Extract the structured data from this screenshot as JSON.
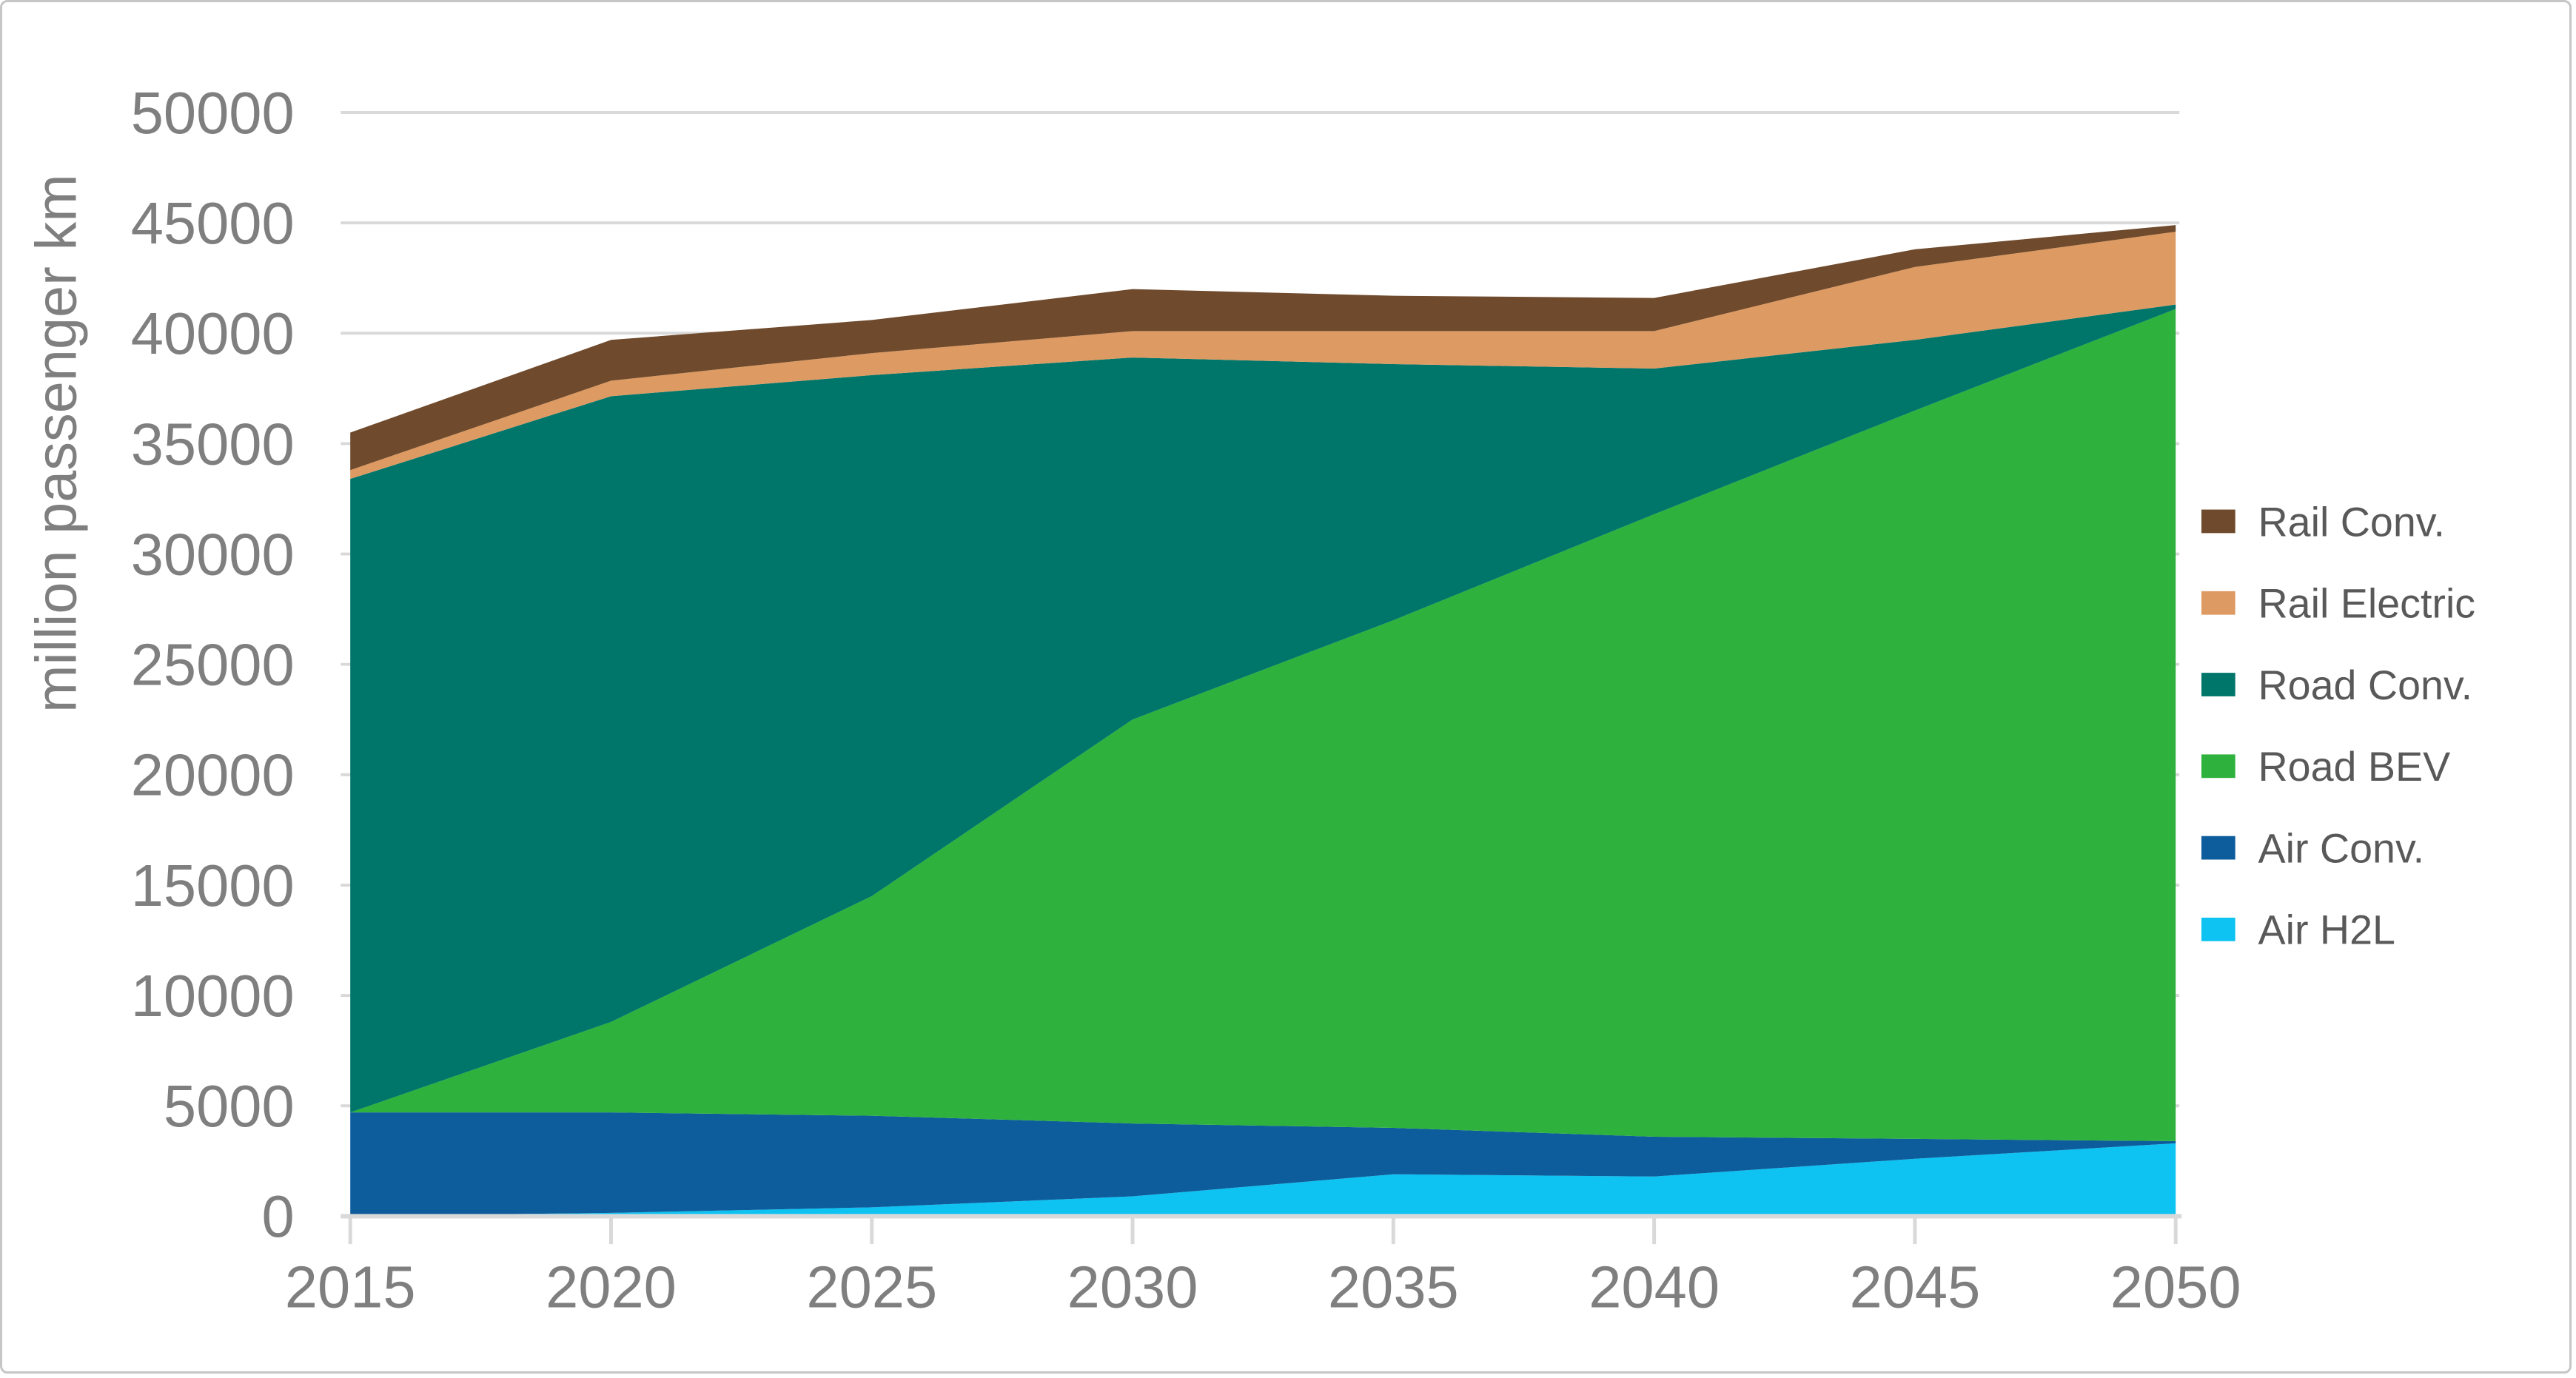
{
  "chart_data": {
    "type": "area",
    "stacked": true,
    "title": "",
    "xlabel": "",
    "ylabel": "million passenger km",
    "x": [
      2015,
      2020,
      2025,
      2030,
      2035,
      2040,
      2045,
      2050
    ],
    "xtick_labels": [
      "2015",
      "2020",
      "2025",
      "2030",
      "2035",
      "2040",
      "2045",
      "2050"
    ],
    "ylim": [
      0,
      50000
    ],
    "ytick_step": 5000,
    "ytick_labels": [
      "0",
      "5000",
      "10000",
      "15000",
      "20000",
      "25000",
      "30000",
      "35000",
      "40000",
      "45000",
      "50000"
    ],
    "grid": true,
    "legend_position": "right",
    "series": [
      {
        "name": "Air H2L",
        "color": "#0ec2f1",
        "values": [
          0,
          150,
          400,
          900,
          1900,
          1800,
          2600,
          3300
        ]
      },
      {
        "name": "Air Conv.",
        "color": "#0d5c9c",
        "values": [
          4700,
          4550,
          4150,
          3300,
          2100,
          1800,
          900,
          100
        ]
      },
      {
        "name": "Road BEV",
        "color": "#2eb23d",
        "values": [
          0,
          4100,
          9950,
          18300,
          23000,
          28200,
          33000,
          37700
        ]
      },
      {
        "name": "Road Conv.",
        "color": "#00766b",
        "values": [
          28700,
          28350,
          23600,
          16400,
          11600,
          6600,
          3200,
          200
        ]
      },
      {
        "name": "Rail Electric",
        "color": "#dd9a62",
        "values": [
          400,
          700,
          1000,
          1200,
          1500,
          1700,
          3300,
          3300
        ]
      },
      {
        "name": "Rail Conv.",
        "color": "#6f4a2c",
        "values": [
          1700,
          1850,
          1500,
          1900,
          1600,
          1500,
          800,
          300
        ]
      }
    ],
    "legend_order_top_to_bottom": [
      "Rail Conv.",
      "Rail Electric",
      "Road Conv.",
      "Road BEV",
      "Air Conv.",
      "Air H2L"
    ]
  },
  "style_colors": {
    "gridline": "#d9d9d9",
    "axis_line": "#d9d9d9",
    "tick_mark": "#d9d9d9",
    "tick_text": "#7f7f7f",
    "legend_text": "#595959",
    "frame_border": "#c6c6c6",
    "background": "#ffffff"
  }
}
